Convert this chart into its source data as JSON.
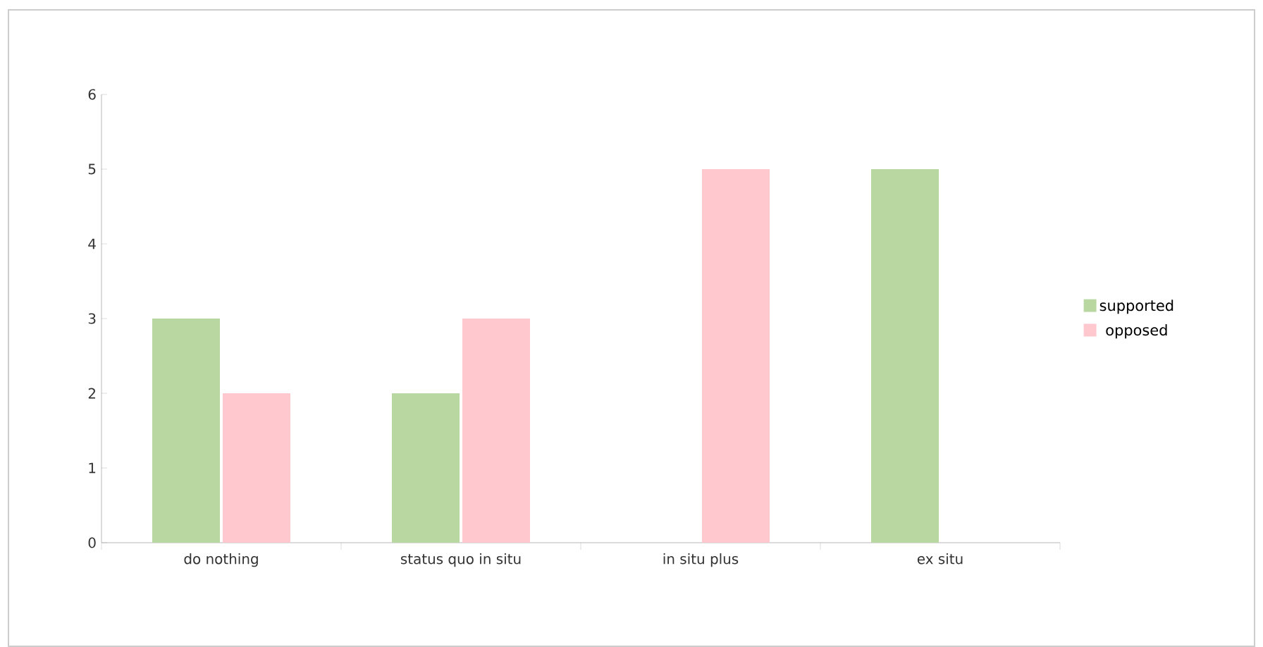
{
  "chart_data": {
    "type": "bar",
    "categories": [
      "do nothing",
      "status quo in situ",
      "in situ plus",
      "ex situ"
    ],
    "series": [
      {
        "name": "supported",
        "color": "#b9d7a0",
        "values": [
          3,
          2,
          null,
          5
        ]
      },
      {
        "name": "opposed",
        "color": "#ffc7ce",
        "values": [
          2,
          3,
          5,
          null
        ]
      }
    ],
    "ylim": [
      0,
      6
    ],
    "yticks": [
      0,
      1,
      2,
      3,
      4,
      5,
      6
    ],
    "legend": "right",
    "grid": false
  }
}
